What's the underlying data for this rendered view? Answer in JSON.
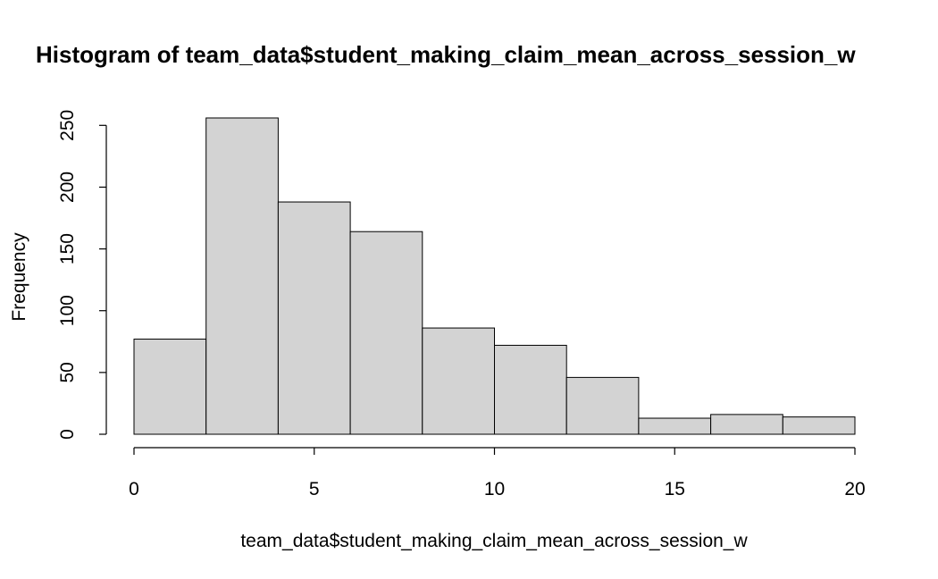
{
  "chart_data": {
    "type": "bar",
    "title": "Histogram of team_data$student_making_claim_mean_across_session_w",
    "xlabel": "team_data$student_making_claim_mean_across_session_w",
    "ylabel": "Frequency",
    "bins": [
      {
        "x0": 0,
        "x1": 2,
        "value": 77
      },
      {
        "x0": 2,
        "x1": 4,
        "value": 256
      },
      {
        "x0": 4,
        "x1": 6,
        "value": 188
      },
      {
        "x0": 6,
        "x1": 8,
        "value": 164
      },
      {
        "x0": 8,
        "x1": 10,
        "value": 86
      },
      {
        "x0": 10,
        "x1": 12,
        "value": 72
      },
      {
        "x0": 12,
        "x1": 14,
        "value": 46
      },
      {
        "x0": 14,
        "x1": 16,
        "value": 13
      },
      {
        "x0": 16,
        "x1": 18,
        "value": 16
      },
      {
        "x0": 18,
        "x1": 20,
        "value": 14
      }
    ],
    "xlim": [
      0,
      20
    ],
    "ylim": [
      0,
      256
    ],
    "xticks": [
      0,
      5,
      10,
      15,
      20
    ],
    "yticks": [
      0,
      50,
      100,
      150,
      200,
      250
    ],
    "grid": false,
    "bar_fill": "#d3d3d3",
    "bar_stroke": "#000000"
  }
}
